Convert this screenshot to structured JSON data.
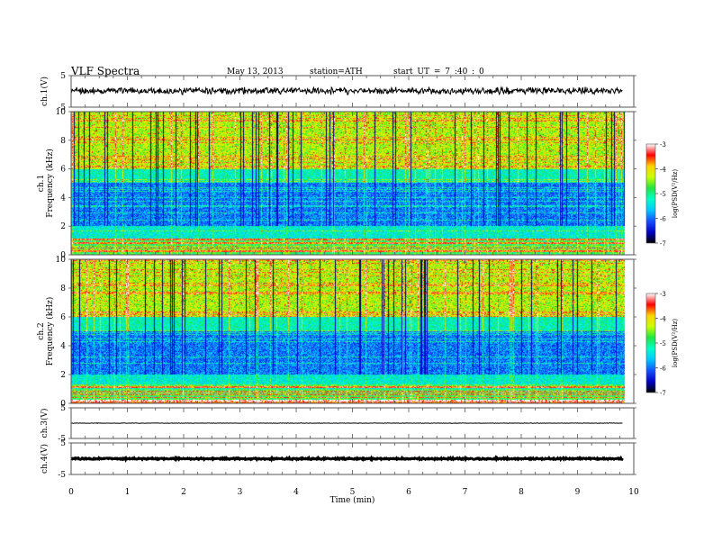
{
  "header": {
    "title": "VLF  Spectra",
    "date": "May 13, 2013",
    "station": "station=ATH",
    "start": "start  UT  =   7  :40 : 0"
  },
  "colors": {
    "waveform": "#000000",
    "frame": "#555555",
    "colormap": [
      "#000000",
      "#0000c8",
      "#1450ff",
      "#00c8ff",
      "#00ffc8",
      "#20e640",
      "#c8ff00",
      "#ffd200",
      "#ff0000",
      "#ffffff"
    ]
  },
  "chart_data": [
    {
      "type": "line",
      "name": "ch1-waveform",
      "ylabel": "ch.1(V)",
      "ylim": [
        -5,
        5
      ],
      "yticks": [
        "5",
        "-5"
      ],
      "x_range_min": [
        0,
        9.8
      ],
      "series_level_v": 0.2,
      "series_noise_pp_v": 1.6
    },
    {
      "type": "heatmap",
      "name": "ch1-spectrogram",
      "ylabel_channel": "ch.1",
      "ylabel": "Frequency  (kHz)",
      "ylim": [
        0,
        10
      ],
      "yticks": [
        "10",
        "8",
        "6",
        "4",
        "2",
        "0"
      ],
      "colorbar": {
        "label": "log(PSD(V²/Hz)",
        "range": [
          -7,
          -3
        ],
        "ticks": [
          "-3",
          "-4",
          "-5",
          "-6",
          "-7"
        ]
      }
    },
    {
      "type": "heatmap",
      "name": "ch2-spectrogram",
      "ylabel_channel": "ch.2",
      "ylabel": "Frequency  (kHz)",
      "ylim": [
        0,
        10
      ],
      "yticks": [
        "10",
        "8",
        "6",
        "4",
        "2",
        "0"
      ],
      "colorbar": {
        "label": "log(PSD(V²/Hz)",
        "range": [
          -7,
          -3
        ],
        "ticks": [
          "-3",
          "-4",
          "-5",
          "-6",
          "-7"
        ]
      }
    },
    {
      "type": "line",
      "name": "ch3-waveform",
      "ylabel": "ch.3(V)",
      "ylim": [
        -5,
        5
      ],
      "yticks": [
        "5",
        "-5"
      ],
      "x_range_min": [
        0,
        9.8
      ],
      "series_level_v": 0.0,
      "series_noise_pp_v": 0.1
    },
    {
      "type": "line",
      "name": "ch4-waveform",
      "ylabel": "ch.4(V)",
      "ylim": [
        -5,
        5
      ],
      "yticks": [
        "5",
        "-5"
      ],
      "x_range_min": [
        0,
        9.8
      ],
      "series_level_v": 0.0,
      "series_noise_pp_v": 0.35
    }
  ],
  "xaxis": {
    "label": "Time  (min)",
    "range": [
      0,
      10
    ],
    "ticks": [
      "0",
      "1",
      "2",
      "3",
      "4",
      "5",
      "6",
      "7",
      "8",
      "9",
      "10"
    ]
  }
}
